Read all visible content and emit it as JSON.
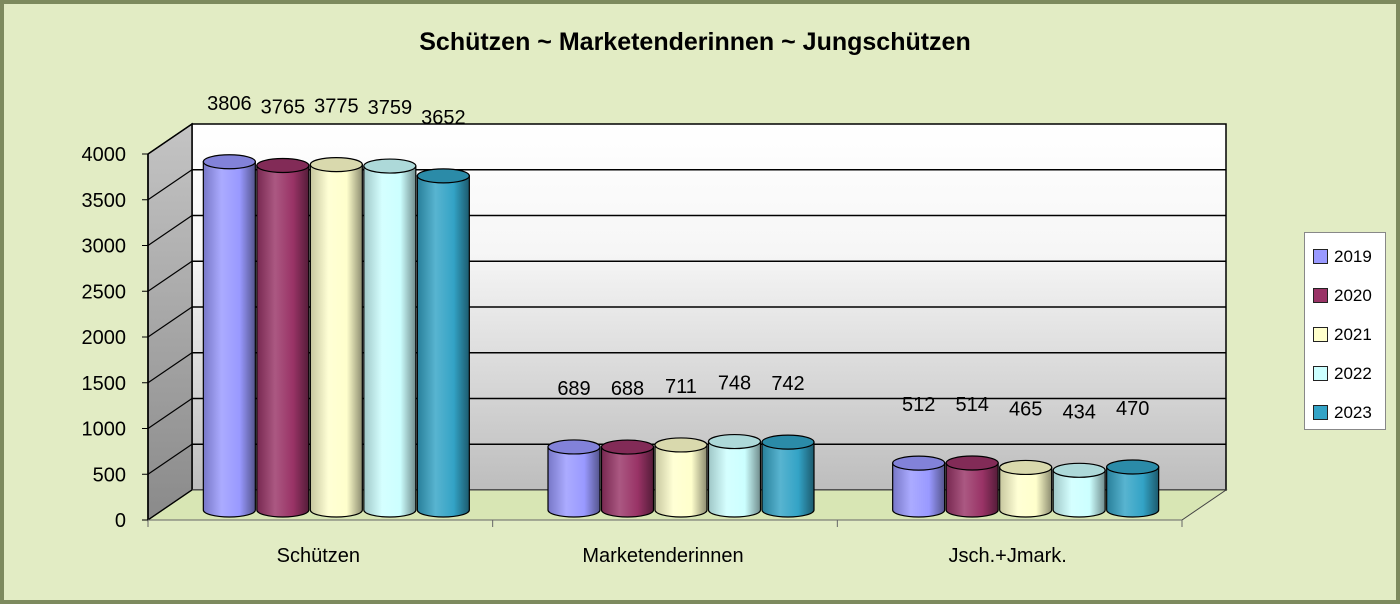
{
  "chart_data": {
    "type": "bar",
    "title": "Schützen  ~  Marketenderinnen  ~  Jungschützen",
    "categories": [
      "Schützen",
      "Marketenderinnen",
      "Jsch.+Jmark."
    ],
    "series": [
      {
        "name": "2019",
        "color": "#9999ff",
        "values": [
          3806,
          689,
          512
        ]
      },
      {
        "name": "2020",
        "color": "#993366",
        "values": [
          3765,
          688,
          514
        ]
      },
      {
        "name": "2021",
        "color": "#ffffcc",
        "values": [
          3775,
          711,
          465
        ]
      },
      {
        "name": "2022",
        "color": "#ccffff",
        "values": [
          3759,
          748,
          434
        ]
      },
      {
        "name": "2023",
        "color": "#33a3c6",
        "values": [
          3652,
          742,
          470
        ]
      }
    ],
    "yticks": [
      "0",
      "500",
      "1000",
      "1500",
      "2000",
      "2500",
      "3000",
      "3500",
      "4000"
    ],
    "ylim": [
      0,
      4000
    ],
    "grid": true,
    "legend_position": "right"
  }
}
